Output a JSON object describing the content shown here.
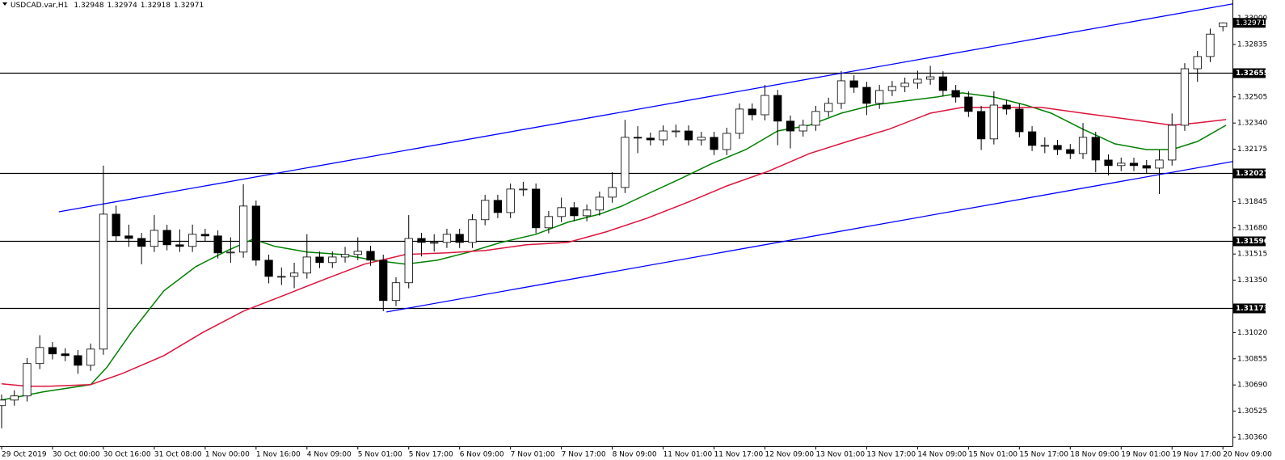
{
  "header": {
    "symbol": "USDCAD.var,H1"
  },
  "chart_data": {
    "type": "candlestick",
    "x": [
      0,
      4,
      8,
      12,
      16,
      20,
      24,
      28,
      32,
      36,
      40,
      44,
      48,
      52,
      56,
      60,
      64,
      68,
      72,
      76,
      80,
      84,
      88,
      92,
      96,
      100,
      104,
      108,
      112,
      116,
      120,
      124,
      128,
      132,
      136,
      140,
      144,
      148,
      152,
      156,
      160,
      164,
      168,
      172,
      176,
      180,
      184,
      188,
      192,
      196,
      200,
      204,
      208,
      212,
      216,
      220,
      224,
      228,
      232,
      236,
      240,
      244,
      248,
      252,
      256,
      260,
      264,
      268,
      272,
      276,
      280,
      284,
      288,
      292,
      296,
      300,
      304,
      308,
      312,
      316,
      320,
      324,
      328,
      332,
      336,
      340,
      344,
      348,
      352,
      356,
      360,
      364,
      368,
      372,
      376,
      380,
      384
    ],
    "open": [
      1.3056,
      1.30595,
      1.30621,
      1.30825,
      1.30926,
      1.30886,
      1.30875,
      1.30814,
      1.30916,
      1.31766,
      1.31629,
      1.31613,
      1.31563,
      1.31664,
      1.31573,
      1.31563,
      1.31639,
      1.31629,
      1.31522,
      1.31527,
      1.31817,
      1.31476,
      1.31374,
      1.31374,
      1.31395,
      1.31496,
      1.31461,
      1.31496,
      1.31512,
      1.31532,
      1.31476,
      1.31222,
      1.31334,
      1.31613,
      1.31588,
      1.31588,
      1.31639,
      1.31588,
      1.31731,
      1.31853,
      1.31776,
      1.31924,
      1.31924,
      1.3168,
      1.31751,
      1.31807,
      1.31756,
      1.31792,
      1.31873,
      1.31934,
      1.3225,
      1.32245,
      1.32234,
      1.3229,
      1.3229,
      1.32234,
      1.3225,
      1.32173,
      1.32275,
      1.32428,
      1.32392,
      1.32514,
      1.32352,
      1.3229,
      1.32326,
      1.32413,
      1.32464,
      1.32606,
      1.32565,
      1.32464,
      1.32545,
      1.3257,
      1.32591,
      1.32616,
      1.32631,
      1.32545,
      1.32504,
      1.32413,
      1.3224,
      1.32453,
      1.32428,
      1.32285,
      1.32199,
      1.32199,
      1.32173,
      1.32148,
      1.3225,
      1.32107,
      1.32072,
      1.32087,
      1.32072,
      1.32056,
      1.32107,
      1.32326,
      1.32682,
      1.32759,
      1.32948
    ],
    "high": [
      1.3063,
      1.30656,
      1.3086,
      1.31003,
      1.30961,
      1.30921,
      1.3091,
      1.30951,
      1.32072,
      1.3182,
      1.317,
      1.31648,
      1.3176,
      1.31699,
      1.3167,
      1.317,
      1.31674,
      1.31664,
      1.3162,
      1.31955,
      1.31852,
      1.31511,
      1.3143,
      1.3146,
      1.3164,
      1.31531,
      1.31531,
      1.3156,
      1.3162,
      1.31567,
      1.31511,
      1.31369,
      1.3176,
      1.31648,
      1.3164,
      1.31674,
      1.31674,
      1.31766,
      1.31888,
      1.31888,
      1.31959,
      1.3197,
      1.31959,
      1.31786,
      1.3187,
      1.31842,
      1.31827,
      1.31908,
      1.3203,
      1.3236,
      1.3232,
      1.3228,
      1.32325,
      1.3233,
      1.32325,
      1.32285,
      1.32285,
      1.3231,
      1.32463,
      1.32463,
      1.3258,
      1.32549,
      1.32387,
      1.32361,
      1.32448,
      1.32499,
      1.32667,
      1.32641,
      1.326,
      1.3258,
      1.32605,
      1.32626,
      1.3267,
      1.327,
      1.32666,
      1.3258,
      1.32539,
      1.32448,
      1.3254,
      1.32488,
      1.32463,
      1.3232,
      1.3225,
      1.32234,
      1.32208,
      1.3234,
      1.32285,
      1.32142,
      1.32122,
      1.32122,
      1.32107,
      1.3217,
      1.324,
      1.32717,
      1.32794,
      1.32935,
      1.32974
    ],
    "low": [
      1.30417,
      1.3056,
      1.30586,
      1.3079,
      1.30851,
      1.3084,
      1.3076,
      1.30779,
      1.30881,
      1.31594,
      1.3156,
      1.3145,
      1.31528,
      1.31538,
      1.31528,
      1.31528,
      1.31594,
      1.31487,
      1.3146,
      1.31492,
      1.31441,
      1.3133,
      1.3132,
      1.313,
      1.3136,
      1.31426,
      1.31426,
      1.31461,
      1.31477,
      1.31441,
      1.31155,
      1.31187,
      1.31299,
      1.315,
      1.3153,
      1.31553,
      1.31553,
      1.31553,
      1.31696,
      1.31741,
      1.31741,
      1.3188,
      1.31645,
      1.31645,
      1.31716,
      1.31721,
      1.31721,
      1.31757,
      1.31838,
      1.31899,
      1.3215,
      1.32199,
      1.32199,
      1.3225,
      1.32199,
      1.32199,
      1.32138,
      1.32138,
      1.3224,
      1.32357,
      1.32357,
      1.322,
      1.3218,
      1.32255,
      1.32291,
      1.32378,
      1.32429,
      1.3253,
      1.3239,
      1.32429,
      1.3251,
      1.32535,
      1.32556,
      1.32581,
      1.3251,
      1.32469,
      1.32378,
      1.3217,
      1.32205,
      1.32393,
      1.3225,
      1.32164,
      1.3215,
      1.32138,
      1.32113,
      1.32113,
      1.3203,
      1.3201,
      1.32037,
      1.32037,
      1.32021,
      1.31893,
      1.32072,
      1.32291,
      1.326,
      1.32724,
      1.32918
    ],
    "close": [
      1.30595,
      1.30621,
      1.30825,
      1.30926,
      1.30886,
      1.30875,
      1.30814,
      1.30916,
      1.31766,
      1.31629,
      1.31613,
      1.31563,
      1.31664,
      1.31573,
      1.31563,
      1.31639,
      1.31629,
      1.31522,
      1.31527,
      1.31817,
      1.31476,
      1.31374,
      1.31374,
      1.31395,
      1.31496,
      1.31461,
      1.31496,
      1.31512,
      1.31532,
      1.31476,
      1.31222,
      1.31334,
      1.31613,
      1.31588,
      1.31588,
      1.31639,
      1.31588,
      1.31731,
      1.31853,
      1.31776,
      1.31924,
      1.31924,
      1.3168,
      1.31751,
      1.31807,
      1.31756,
      1.31792,
      1.31873,
      1.31934,
      1.3225,
      1.32245,
      1.32234,
      1.3229,
      1.3229,
      1.32234,
      1.3225,
      1.32173,
      1.32275,
      1.32428,
      1.32392,
      1.32514,
      1.32352,
      1.3229,
      1.32326,
      1.32413,
      1.32464,
      1.32606,
      1.32565,
      1.32464,
      1.32545,
      1.3257,
      1.32591,
      1.32616,
      1.32631,
      1.32545,
      1.32504,
      1.32413,
      1.3224,
      1.32453,
      1.32428,
      1.32285,
      1.32199,
      1.32199,
      1.32173,
      1.32148,
      1.3225,
      1.32107,
      1.32072,
      1.32087,
      1.32072,
      1.32056,
      1.32107,
      1.32326,
      1.32682,
      1.32759,
      1.329,
      1.32971
    ],
    "up_color": "#ffffff",
    "down_color": "#000000",
    "xlim": [
      0,
      387
    ],
    "xticks": [
      {
        "value": 0,
        "label": "29 Oct 2019"
      },
      {
        "value": 16,
        "label": "30 Oct 00:00"
      },
      {
        "value": 32,
        "label": "30 Oct 16:00"
      },
      {
        "value": 48,
        "label": "31 Oct 08:00"
      },
      {
        "value": 64,
        "label": "1 Nov 00:00"
      },
      {
        "value": 80,
        "label": "1 Nov 16:00"
      },
      {
        "value": 96,
        "label": "4 Nov 09:00"
      },
      {
        "value": 112,
        "label": "5 Nov 01:00"
      },
      {
        "value": 128,
        "label": "5 Nov 17:00"
      },
      {
        "value": 144,
        "label": "6 Nov 09:00"
      },
      {
        "value": 160,
        "label": "7 Nov 01:00"
      },
      {
        "value": 176,
        "label": "7 Nov 17:00"
      },
      {
        "value": 192,
        "label": "8 Nov 09:00"
      },
      {
        "value": 208,
        "label": "11 Nov 01:00"
      },
      {
        "value": 224,
        "label": "11 Nov 17:00"
      },
      {
        "value": 240,
        "label": "12 Nov 09:00"
      },
      {
        "value": 256,
        "label": "13 Nov 01:00"
      },
      {
        "value": 272,
        "label": "13 Nov 17:00"
      },
      {
        "value": 288,
        "label": "14 Nov 09:00"
      },
      {
        "value": 304,
        "label": "15 Nov 01:00"
      },
      {
        "value": 320,
        "label": "15 Nov 17:00"
      },
      {
        "value": 336,
        "label": "18 Nov 09:00"
      },
      {
        "value": 352,
        "label": "19 Nov 01:00"
      },
      {
        "value": 368,
        "label": "19 Nov 17:00"
      },
      {
        "value": 384,
        "label": "20 Nov 09:00"
      }
    ],
    "ylim": [
      1.30304,
      1.33115
    ],
    "yticks": [
      {
        "value": 1.33,
        "label": "1.33000"
      },
      1.32835,
      1.32505,
      {
        "value": 1.3234,
        "label": "1.32340"
      },
      1.32175,
      1.31845,
      {
        "value": 1.3168,
        "label": "1.31680"
      },
      1.31515,
      {
        "value": 1.3135,
        "label": "1.31350"
      },
      {
        "value": 1.3102,
        "label": "1.31020"
      },
      1.30855,
      {
        "value": 1.3069,
        "label": "1.30690"
      },
      1.30525,
      {
        "value": 1.3036,
        "label": "1.30360"
      }
    ],
    "lines": [
      {
        "color": "#008000",
        "x": [
          0,
          13,
          28,
          33,
          41,
          51,
          61,
          71,
          79,
          86,
          96,
          107,
          117,
          127,
          137,
          147,
          157,
          168,
          178,
          188,
          195,
          203,
          213,
          223,
          234,
          244,
          254,
          264,
          274,
          284,
          294,
          302,
          312,
          322,
          330,
          340,
          350,
          360,
          368,
          376,
          385
        ],
        "values": [
          1.30595,
          1.30646,
          1.30692,
          1.30799,
          1.31028,
          1.31283,
          1.31435,
          1.31537,
          1.31608,
          1.31563,
          1.31527,
          1.31512,
          1.31476,
          1.31451,
          1.31476,
          1.31527,
          1.31588,
          1.31639,
          1.31715,
          1.31766,
          1.31817,
          1.31893,
          1.31985,
          1.32082,
          1.32173,
          1.3229,
          1.32326,
          1.32402,
          1.32453,
          1.32479,
          1.32504,
          1.3253,
          1.32504,
          1.32453,
          1.32402,
          1.32301,
          1.32209,
          1.32173,
          1.32173,
          1.32224,
          1.32326
        ]
      },
      {
        "color": "#dc143c",
        "x": [
          0,
          8,
          15,
          28,
          38,
          51,
          63,
          76,
          89,
          102,
          114,
          127,
          140,
          152,
          165,
          178,
          190,
          203,
          216,
          228,
          241,
          254,
          266,
          279,
          292,
          302,
          315,
          327,
          340,
          355,
          368,
          376,
          385
        ],
        "values": [
          1.30697,
          1.30682,
          1.30682,
          1.30692,
          1.30763,
          1.30875,
          1.31018,
          1.31155,
          1.31257,
          1.31359,
          1.31451,
          1.31512,
          1.31522,
          1.31537,
          1.31573,
          1.31588,
          1.31654,
          1.31741,
          1.31843,
          1.31944,
          1.32036,
          1.32148,
          1.32224,
          1.32301,
          1.32402,
          1.32438,
          1.32438,
          1.32438,
          1.32402,
          1.32362,
          1.32326,
          1.32341,
          1.32362
        ]
      }
    ],
    "trendlines": [
      {
        "color": "#0000ff",
        "x": [
          18,
          387
        ],
        "values": [
          1.31781,
          1.3309
        ]
      },
      {
        "color": "#0000ff",
        "x": [
          121,
          387
        ],
        "values": [
          1.3115,
          1.32097
        ]
      }
    ],
    "levels": {
      "color": "#000000",
      "values": [
        1.32655,
        1.32027,
        1.31596,
        1.31173
      ]
    }
  }
}
